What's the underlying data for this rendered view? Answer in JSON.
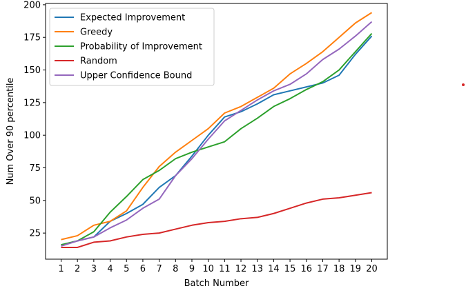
{
  "chart_data": {
    "type": "line",
    "title": "",
    "xlabel": "Batch Number",
    "ylabel": "Num Over 90 percentile",
    "x": [
      1,
      2,
      3,
      4,
      5,
      6,
      7,
      8,
      9,
      10,
      11,
      12,
      13,
      14,
      15,
      16,
      17,
      18,
      19,
      20
    ],
    "xticks": [
      "1",
      "2",
      "3",
      "4",
      "5",
      "6",
      "7",
      "8",
      "9",
      "10",
      "11",
      "12",
      "13",
      "14",
      "15",
      "16",
      "17",
      "18",
      "19",
      "20"
    ],
    "xlim": [
      0.05,
      20.95
    ],
    "ylim": [
      5,
      201
    ],
    "yticks": [
      25,
      50,
      75,
      100,
      125,
      150,
      175,
      200
    ],
    "grid": false,
    "legend_position": "top-left",
    "series": [
      {
        "name": "Expected Improvement",
        "color": "#1f77b4",
        "values": [
          16,
          19,
          22,
          34,
          40,
          47,
          60,
          69,
          84,
          100,
          114,
          118,
          124,
          131,
          134,
          137,
          140,
          146,
          162,
          176
        ]
      },
      {
        "name": "Greedy",
        "color": "#ff7f0e",
        "values": [
          20,
          23,
          31,
          34,
          42,
          60,
          76,
          87,
          96,
          105,
          117,
          122,
          129,
          136,
          147,
          155,
          164,
          175,
          186,
          194
        ]
      },
      {
        "name": "Probability of Improvement",
        "color": "#2ca02c",
        "values": [
          16,
          19,
          26,
          41,
          53,
          66,
          73,
          82,
          87,
          91,
          95,
          105,
          113,
          122,
          128,
          135,
          141,
          150,
          164,
          178
        ]
      },
      {
        "name": "Random",
        "color": "#d62728",
        "values": [
          14,
          14,
          18,
          19,
          22,
          24,
          25,
          28,
          31,
          33,
          34,
          36,
          37,
          40,
          44,
          48,
          51,
          52,
          54,
          56
        ]
      },
      {
        "name": "Upper Confidence Bound",
        "color": "#9467bd",
        "values": [
          15,
          19,
          22,
          29,
          35,
          44,
          51,
          69,
          82,
          97,
          111,
          119,
          127,
          134,
          139,
          147,
          158,
          166,
          176,
          187
        ]
      }
    ],
    "outlier_point": {
      "color": "#d62728"
    }
  }
}
